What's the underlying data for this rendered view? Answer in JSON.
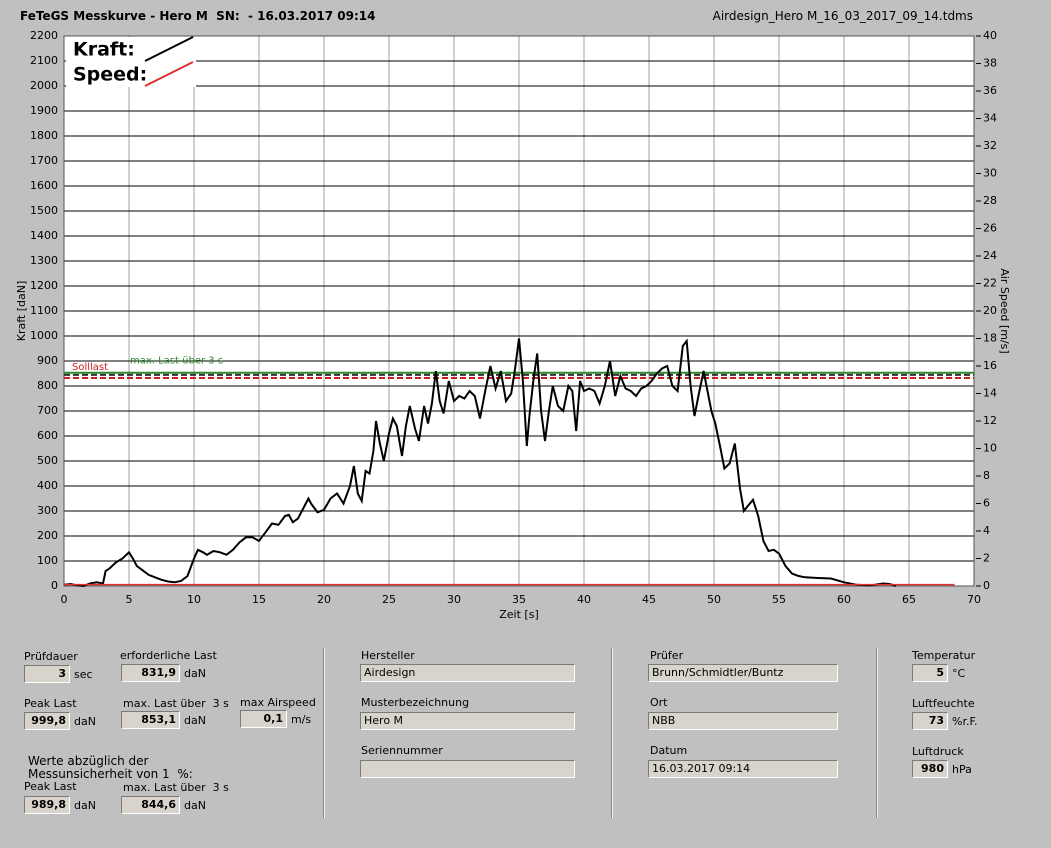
{
  "header": {
    "title": "FeTeGS Messkurve - Hero M  SN:  - 16.03.2017 09:14",
    "filename": "Airdesign_Hero M_16_03_2017_09_14.tdms"
  },
  "chart_data": {
    "type": "line",
    "xlabel": "Zeit [s]",
    "ylabel": "Kraft [daN]",
    "y2label": "Air Speed [m/s]",
    "xlim": [
      0,
      70
    ],
    "xticks": [
      0,
      5,
      10,
      15,
      20,
      25,
      30,
      35,
      40,
      45,
      50,
      55,
      60,
      65,
      70
    ],
    "ylim": [
      0,
      2200
    ],
    "yticks": [
      0,
      100,
      200,
      300,
      400,
      500,
      600,
      700,
      800,
      900,
      1000,
      1100,
      1200,
      1300,
      1400,
      1500,
      1600,
      1700,
      1800,
      1900,
      2000,
      2100,
      2200
    ],
    "y2lim": [
      0,
      40
    ],
    "y2ticks": [
      0,
      2,
      4,
      6,
      8,
      10,
      12,
      14,
      16,
      18,
      20,
      22,
      24,
      26,
      28,
      30,
      32,
      34,
      36,
      38,
      40
    ],
    "grid": true,
    "legend_position": "upper left",
    "series": [
      {
        "name": "Kraft:",
        "color": "#000000",
        "x": [
          0,
          0.5,
          1,
          1.5,
          2,
          2.5,
          3,
          3.2,
          3.5,
          4,
          4.5,
          5,
          5.3,
          5.6,
          6,
          6.5,
          7,
          7.5,
          8,
          8.5,
          9,
          9.5,
          10,
          10.3,
          10.7,
          11,
          11.5,
          12,
          12.5,
          13,
          13.5,
          14,
          14.5,
          15,
          15.5,
          16,
          16.5,
          17,
          17.3,
          17.6,
          18,
          18.5,
          18.8,
          19,
          19.5,
          20,
          20.5,
          21,
          21.5,
          22,
          22.3,
          22.6,
          22.9,
          23.2,
          23.5,
          23.8,
          24,
          24.3,
          24.6,
          25,
          25.3,
          25.6,
          26,
          26.3,
          26.6,
          27,
          27.3,
          27.7,
          28,
          28.3,
          28.6,
          28.9,
          29.2,
          29.6,
          30,
          30.4,
          30.8,
          31.2,
          31.6,
          32,
          32.4,
          32.8,
          33.2,
          33.6,
          34,
          34.4,
          34.7,
          35,
          35.3,
          35.6,
          35.8,
          36.1,
          36.4,
          36.7,
          37,
          37.3,
          37.6,
          38,
          38.4,
          38.8,
          39.1,
          39.4,
          39.7,
          40,
          40.4,
          40.8,
          41.2,
          41.6,
          42,
          42.4,
          42.8,
          43.2,
          43.6,
          44,
          44.4,
          44.8,
          45.2,
          45.6,
          46,
          46.4,
          46.8,
          47.2,
          47.6,
          47.9,
          48.2,
          48.5,
          48.8,
          49.2,
          49.5,
          49.8,
          50.1,
          50.5,
          50.8,
          51.2,
          51.6,
          52,
          52.3,
          52.6,
          53,
          53.4,
          53.8,
          54.2,
          54.6,
          55,
          55.5,
          56,
          56.5,
          57,
          58,
          59,
          60,
          61,
          62,
          63,
          63.5,
          64
        ],
        "values": [
          5,
          8,
          3,
          0,
          10,
          15,
          10,
          60,
          70,
          95,
          110,
          135,
          110,
          80,
          65,
          45,
          35,
          25,
          18,
          15,
          20,
          40,
          110,
          145,
          135,
          125,
          140,
          135,
          125,
          145,
          175,
          195,
          195,
          180,
          215,
          250,
          245,
          280,
          285,
          255,
          270,
          320,
          350,
          330,
          295,
          305,
          350,
          370,
          330,
          400,
          480,
          370,
          340,
          460,
          450,
          540,
          660,
          570,
          500,
          610,
          670,
          640,
          520,
          640,
          720,
          630,
          580,
          720,
          650,
          730,
          860,
          740,
          690,
          820,
          740,
          760,
          750,
          780,
          760,
          670,
          780,
          880,
          790,
          860,
          740,
          770,
          870,
          990,
          820,
          560,
          680,
          820,
          930,
          700,
          580,
          700,
          800,
          720,
          700,
          800,
          780,
          620,
          820,
          780,
          790,
          780,
          730,
          800,
          900,
          760,
          840,
          790,
          780,
          760,
          790,
          800,
          820,
          850,
          870,
          880,
          800,
          780,
          960,
          980,
          800,
          680,
          760,
          860,
          780,
          700,
          650,
          550,
          470,
          490,
          570,
          390,
          300,
          320,
          345,
          280,
          180,
          140,
          145,
          130,
          80,
          50,
          40,
          35,
          32,
          30,
          15,
          5,
          2,
          10,
          8,
          0
        ]
      },
      {
        "name": "Speed:",
        "color": "#e03030",
        "axis": "y2",
        "x": [
          0,
          68.5
        ],
        "values": [
          0.1,
          0.1
        ]
      }
    ],
    "reference_lines": [
      {
        "label": "max. Last über  3 s",
        "value": 853.1,
        "color": "#2e8b2e",
        "style": "solid"
      },
      {
        "value": 844.6,
        "color": "#333333",
        "style": "dashed"
      },
      {
        "label": "Solllast",
        "value": 831.9,
        "color": "#cc2020",
        "style": "dashed"
      }
    ]
  },
  "fields": [
    {
      "label": "Prüfdauer",
      "value": "3",
      "unit": "sec"
    },
    {
      "label": "erforderliche Last",
      "value": "831,9",
      "unit": "daN"
    },
    {
      "label": "Peak Last",
      "value": "999,8",
      "unit": "daN"
    },
    {
      "label": "max. Last über  3 s",
      "value": "853,1",
      "unit": "daN"
    },
    {
      "label": "max Airspeed",
      "value": "0,1",
      "unit": "m/s"
    },
    {
      "label": "Peak Last",
      "value": "989,8",
      "unit": "daN"
    },
    {
      "label": "max. Last über  3 s",
      "value": "844,6",
      "unit": "daN"
    },
    {
      "label": "Hersteller",
      "value": "Airdesign"
    },
    {
      "label": "Musterbezeichnung",
      "value": "Hero M"
    },
    {
      "label": "Seriennummer"
    },
    {
      "label": "Prüfer",
      "value": "Brunn/Schmidtler/Buntz"
    },
    {
      "label": "Ort",
      "value": "NBB"
    },
    {
      "label": "Datum",
      "value": "16.03.2017 09:14"
    },
    {
      "label": "Temperatur",
      "value": "5",
      "unit": "°C"
    },
    {
      "label": "Luftfeuchte",
      "value": "73",
      "unit": "%r.F."
    },
    {
      "label": "Luftdruck",
      "value": "980",
      "unit": "hPa"
    }
  ],
  "note": [
    "Werte abzüglich der",
    "Messunsicherheit von 1  %:"
  ]
}
